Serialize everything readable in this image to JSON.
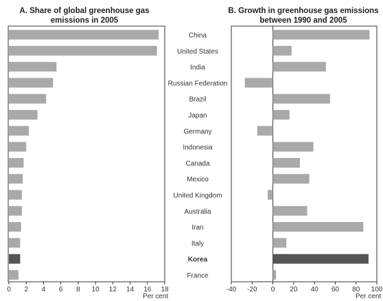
{
  "chart_data": [
    {
      "type": "bar",
      "orientation": "horizontal",
      "title_line1": "A. Share of global greenhouse gas",
      "title_line2": "emissions in 2005",
      "xlabel": "Per cent",
      "xlim": [
        0,
        18
      ],
      "xticks": [
        "0",
        "2",
        "4",
        "6",
        "8",
        "10",
        "12",
        "14",
        "16",
        "18"
      ],
      "categories": [
        "China",
        "United States",
        "India",
        "Russian Federation",
        "Brazil",
        "Japan",
        "Germany",
        "Indonesia",
        "Canada",
        "Mexico",
        "United Kingdom",
        "Australia",
        "Iran",
        "Italy",
        "Korea",
        "France"
      ],
      "values": [
        17.3,
        17.1,
        5.5,
        5.1,
        4.3,
        3.3,
        2.3,
        2.0,
        1.7,
        1.6,
        1.5,
        1.5,
        1.4,
        1.3,
        1.3,
        1.1
      ],
      "highlight": "Korea"
    },
    {
      "type": "bar",
      "orientation": "horizontal",
      "title_line1": "B. Growth in greenhouse gas emissions",
      "title_line2": "between 1990 and 2005",
      "xlabel": "Per cent",
      "xlim": [
        -40,
        100
      ],
      "xticks": [
        "-40",
        "-20",
        "0",
        "20",
        "40",
        "60",
        "80",
        "100"
      ],
      "categories": [
        "China",
        "United States",
        "India",
        "Russian Federation",
        "Brazil",
        "Japan",
        "Germany",
        "Indonesia",
        "Canada",
        "Mexico",
        "United Kingdom",
        "Australia",
        "Iran",
        "Italy",
        "Korea",
        "France"
      ],
      "values": [
        93,
        18,
        51,
        -27,
        55,
        16,
        -15,
        39,
        26,
        35,
        -5,
        33,
        87,
        13,
        92,
        3
      ],
      "highlight": "Korea"
    }
  ],
  "colors": {
    "bar": "#a9a9a9",
    "highlight": "#555555",
    "frame": "#333333"
  }
}
